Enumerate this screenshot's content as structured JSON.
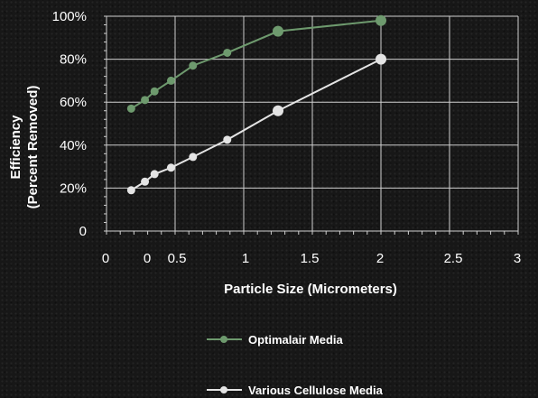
{
  "chart_data": {
    "type": "line",
    "xlabel": "Particle Size (Micrometers)",
    "ylabel": [
      "Efficiency",
      "(Percent Removed)"
    ],
    "xlim": [
      0,
      3
    ],
    "ylim": [
      0,
      100
    ],
    "x_tick_labels": [
      "0",
      "0",
      "0.5",
      "1",
      "1.5",
      "2",
      "2.5",
      "3"
    ],
    "y_ticks": [
      "0",
      "20%",
      "40%",
      "60%",
      "80%",
      "100%"
    ],
    "grid": true,
    "legend_position": "bottom",
    "series": [
      {
        "name": "Optimalair  Media",
        "color": "#6e9a6e",
        "x": [
          0.18,
          0.28,
          0.35,
          0.47,
          0.63,
          0.88,
          1.25,
          2.0
        ],
        "y": [
          57,
          61,
          65,
          70,
          77,
          83,
          93,
          98
        ]
      },
      {
        "name": "Various Cellulose Media",
        "color": "#e4e4e4",
        "x": [
          0.18,
          0.28,
          0.35,
          0.47,
          0.63,
          0.88,
          1.25,
          2.0
        ],
        "y": [
          19,
          23,
          26.5,
          29.5,
          34.5,
          42.5,
          56,
          80
        ]
      }
    ]
  }
}
